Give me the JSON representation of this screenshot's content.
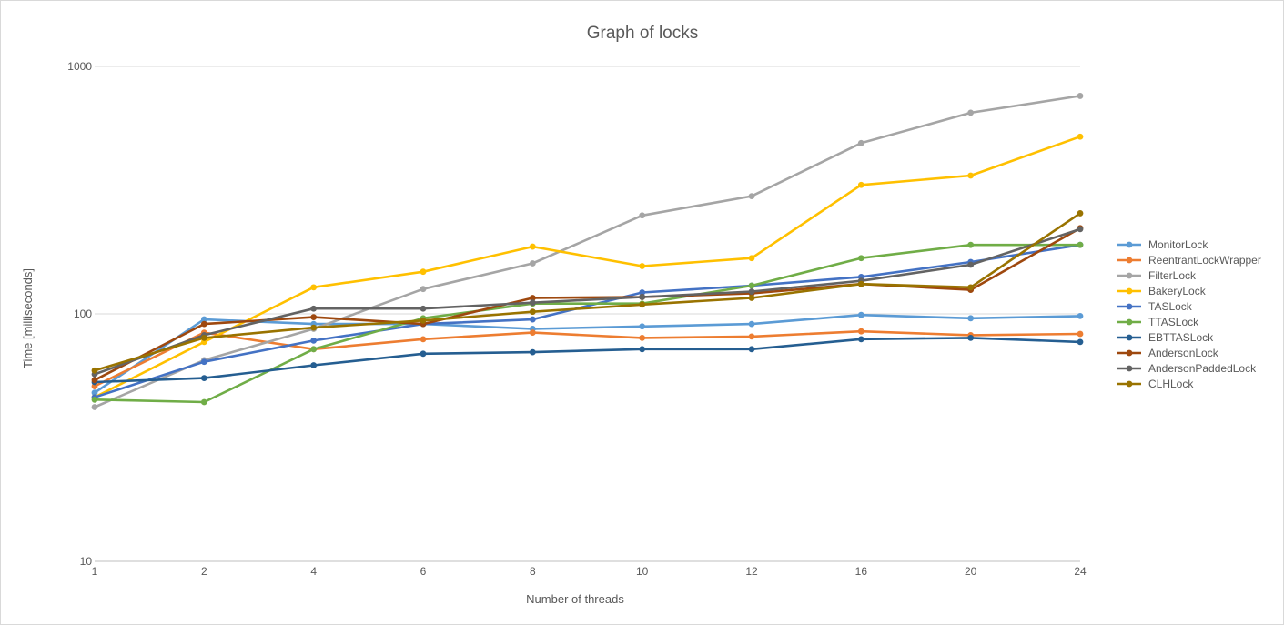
{
  "chart_data": {
    "type": "line",
    "title": "Graph of locks",
    "xlabel": "Number of threads",
    "ylabel": "Time [milliseconds]",
    "yscale": "log",
    "ylim": [
      10,
      1000
    ],
    "yticks": [
      10,
      100,
      1000
    ],
    "categories": [
      "1",
      "2",
      "4",
      "6",
      "8",
      "10",
      "12",
      "16",
      "20",
      "24"
    ],
    "legend_position": "right",
    "grid": "horizontal",
    "series": [
      {
        "name": "MonitorLock",
        "color": "#5b9bd5",
        "values": [
          48,
          95,
          91,
          91,
          87,
          89,
          91,
          99,
          96,
          98
        ]
      },
      {
        "name": "ReentrantLockWrapper",
        "color": "#ed7d31",
        "values": [
          51,
          84,
          72,
          79,
          84,
          80,
          81,
          85,
          82,
          83
        ]
      },
      {
        "name": "FilterLock",
        "color": "#a5a5a5",
        "values": [
          42,
          65,
          87,
          126,
          160,
          250,
          299,
          490,
          650,
          760
        ]
      },
      {
        "name": "BakeryLock",
        "color": "#ffc000",
        "values": [
          46,
          77,
          128,
          148,
          187,
          156,
          168,
          332,
          362,
          520
        ]
      },
      {
        "name": "TASLock",
        "color": "#4472c4",
        "values": [
          46,
          64,
          78,
          91,
          95,
          122,
          130,
          141,
          162,
          190
        ]
      },
      {
        "name": "TTASLock",
        "color": "#70ad47",
        "values": [
          45,
          44,
          72,
          96,
          110,
          110,
          130,
          168,
          190,
          190
        ]
      },
      {
        "name": "EBTTASLock",
        "color": "#255e91",
        "values": [
          53,
          55,
          62,
          69,
          70,
          72,
          72,
          79,
          80,
          77
        ]
      },
      {
        "name": "AndersonLock",
        "color": "#9e480e",
        "values": [
          54,
          91,
          97,
          91,
          116,
          117,
          121,
          132,
          125,
          222
        ]
      },
      {
        "name": "AndersonPaddedLock",
        "color": "#636363",
        "values": [
          57,
          82,
          105,
          105,
          111,
          117,
          123,
          136,
          158,
          220
        ]
      },
      {
        "name": "CLHLock",
        "color": "#997300",
        "values": [
          59,
          80,
          88,
          94,
          102,
          109,
          116,
          132,
          128,
          255
        ]
      }
    ]
  }
}
